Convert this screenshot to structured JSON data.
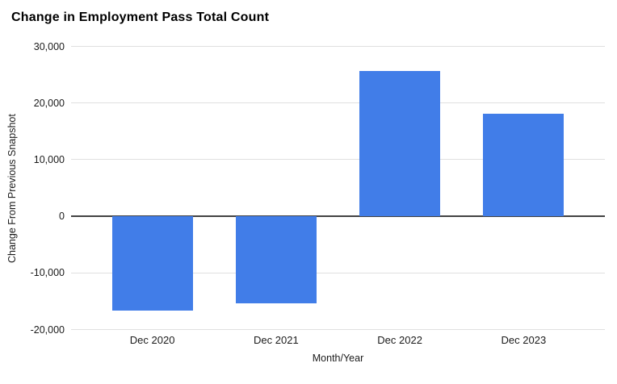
{
  "chart_data": {
    "type": "bar",
    "title": "Change in Employment Pass Total Count",
    "categories": [
      "Dec 2020",
      "Dec 2021",
      "Dec 2022",
      "Dec 2023"
    ],
    "values": [
      -16600,
      -15400,
      25600,
      18100
    ],
    "xlabel": "Month/Year",
    "ylabel": "Change From Previous Snapshot",
    "ylim": [
      -20000,
      30000
    ],
    "yticks": [
      {
        "value": 30000,
        "label": "30,000"
      },
      {
        "value": 20000,
        "label": "20,000"
      },
      {
        "value": 10000,
        "label": "10,000"
      },
      {
        "value": 0,
        "label": "0"
      },
      {
        "value": -10000,
        "label": "-10,000"
      },
      {
        "value": -20000,
        "label": "-20,000"
      }
    ],
    "grid": true,
    "legend": "none",
    "colors": {
      "bar": "#417de8",
      "gridline": "#e0e0e0",
      "zero_line": "#424242",
      "text": "#1a1a1a",
      "title": "#000000",
      "background": "#ffffff"
    }
  }
}
